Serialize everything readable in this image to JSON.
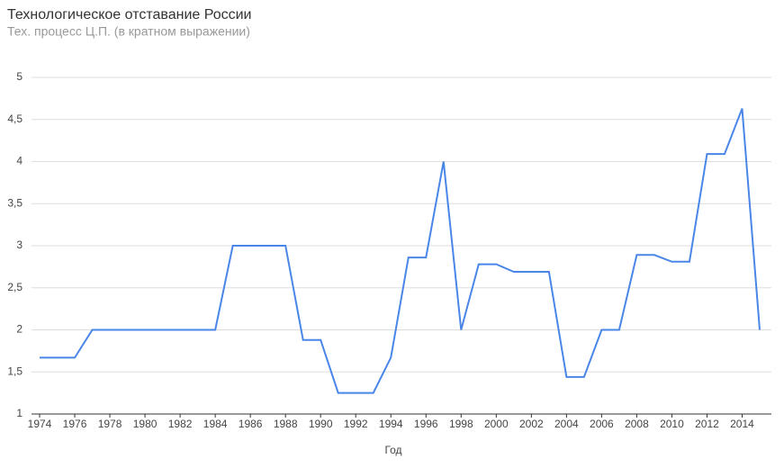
{
  "chart_data": {
    "type": "line",
    "title": "Технологическое отставание России",
    "subtitle": "Тех. процесс Ц.П. (в кратном выражении)",
    "x_label": "Год",
    "x": [
      1974,
      1975,
      1976,
      1977,
      1978,
      1979,
      1980,
      1981,
      1982,
      1983,
      1984,
      1985,
      1986,
      1987,
      1988,
      1989,
      1990,
      1991,
      1992,
      1993,
      1994,
      1995,
      1996,
      1997,
      1998,
      1999,
      2000,
      2001,
      2002,
      2003,
      2004,
      2005,
      2006,
      2007,
      2008,
      2009,
      2010,
      2011,
      2012,
      2013,
      2014,
      2015
    ],
    "series": [
      {
        "color": "#4a86e8",
        "values": [
          1.67,
          1.67,
          1.67,
          2,
          2,
          2,
          2,
          2,
          2,
          2,
          2,
          3,
          3,
          3,
          3,
          1.88,
          1.88,
          1.25,
          1.25,
          1.25,
          1.67,
          2.86,
          2.86,
          4,
          2,
          2.78,
          2.78,
          2.69,
          2.69,
          2.69,
          1.44,
          1.44,
          2,
          2,
          2.89,
          2.89,
          2.81,
          2.81,
          4.09,
          4.09,
          4.63,
          2
        ]
      }
    ],
    "xlim": [
      1974,
      2015
    ],
    "xticks": [
      1974,
      1976,
      1978,
      1980,
      1982,
      1984,
      1986,
      1988,
      1990,
      1992,
      1994,
      1996,
      1998,
      2000,
      2002,
      2004,
      2006,
      2008,
      2010,
      2012,
      2014
    ],
    "ylim": [
      1,
      5
    ],
    "yticks": [
      1,
      {
        "value": 1.5,
        "label": "1,5"
      },
      2,
      {
        "value": 2.5,
        "label": "2,5"
      },
      3,
      {
        "value": 3.5,
        "label": "3,5"
      },
      4,
      {
        "value": 4.5,
        "label": "4,5"
      },
      5
    ],
    "grid": true
  }
}
